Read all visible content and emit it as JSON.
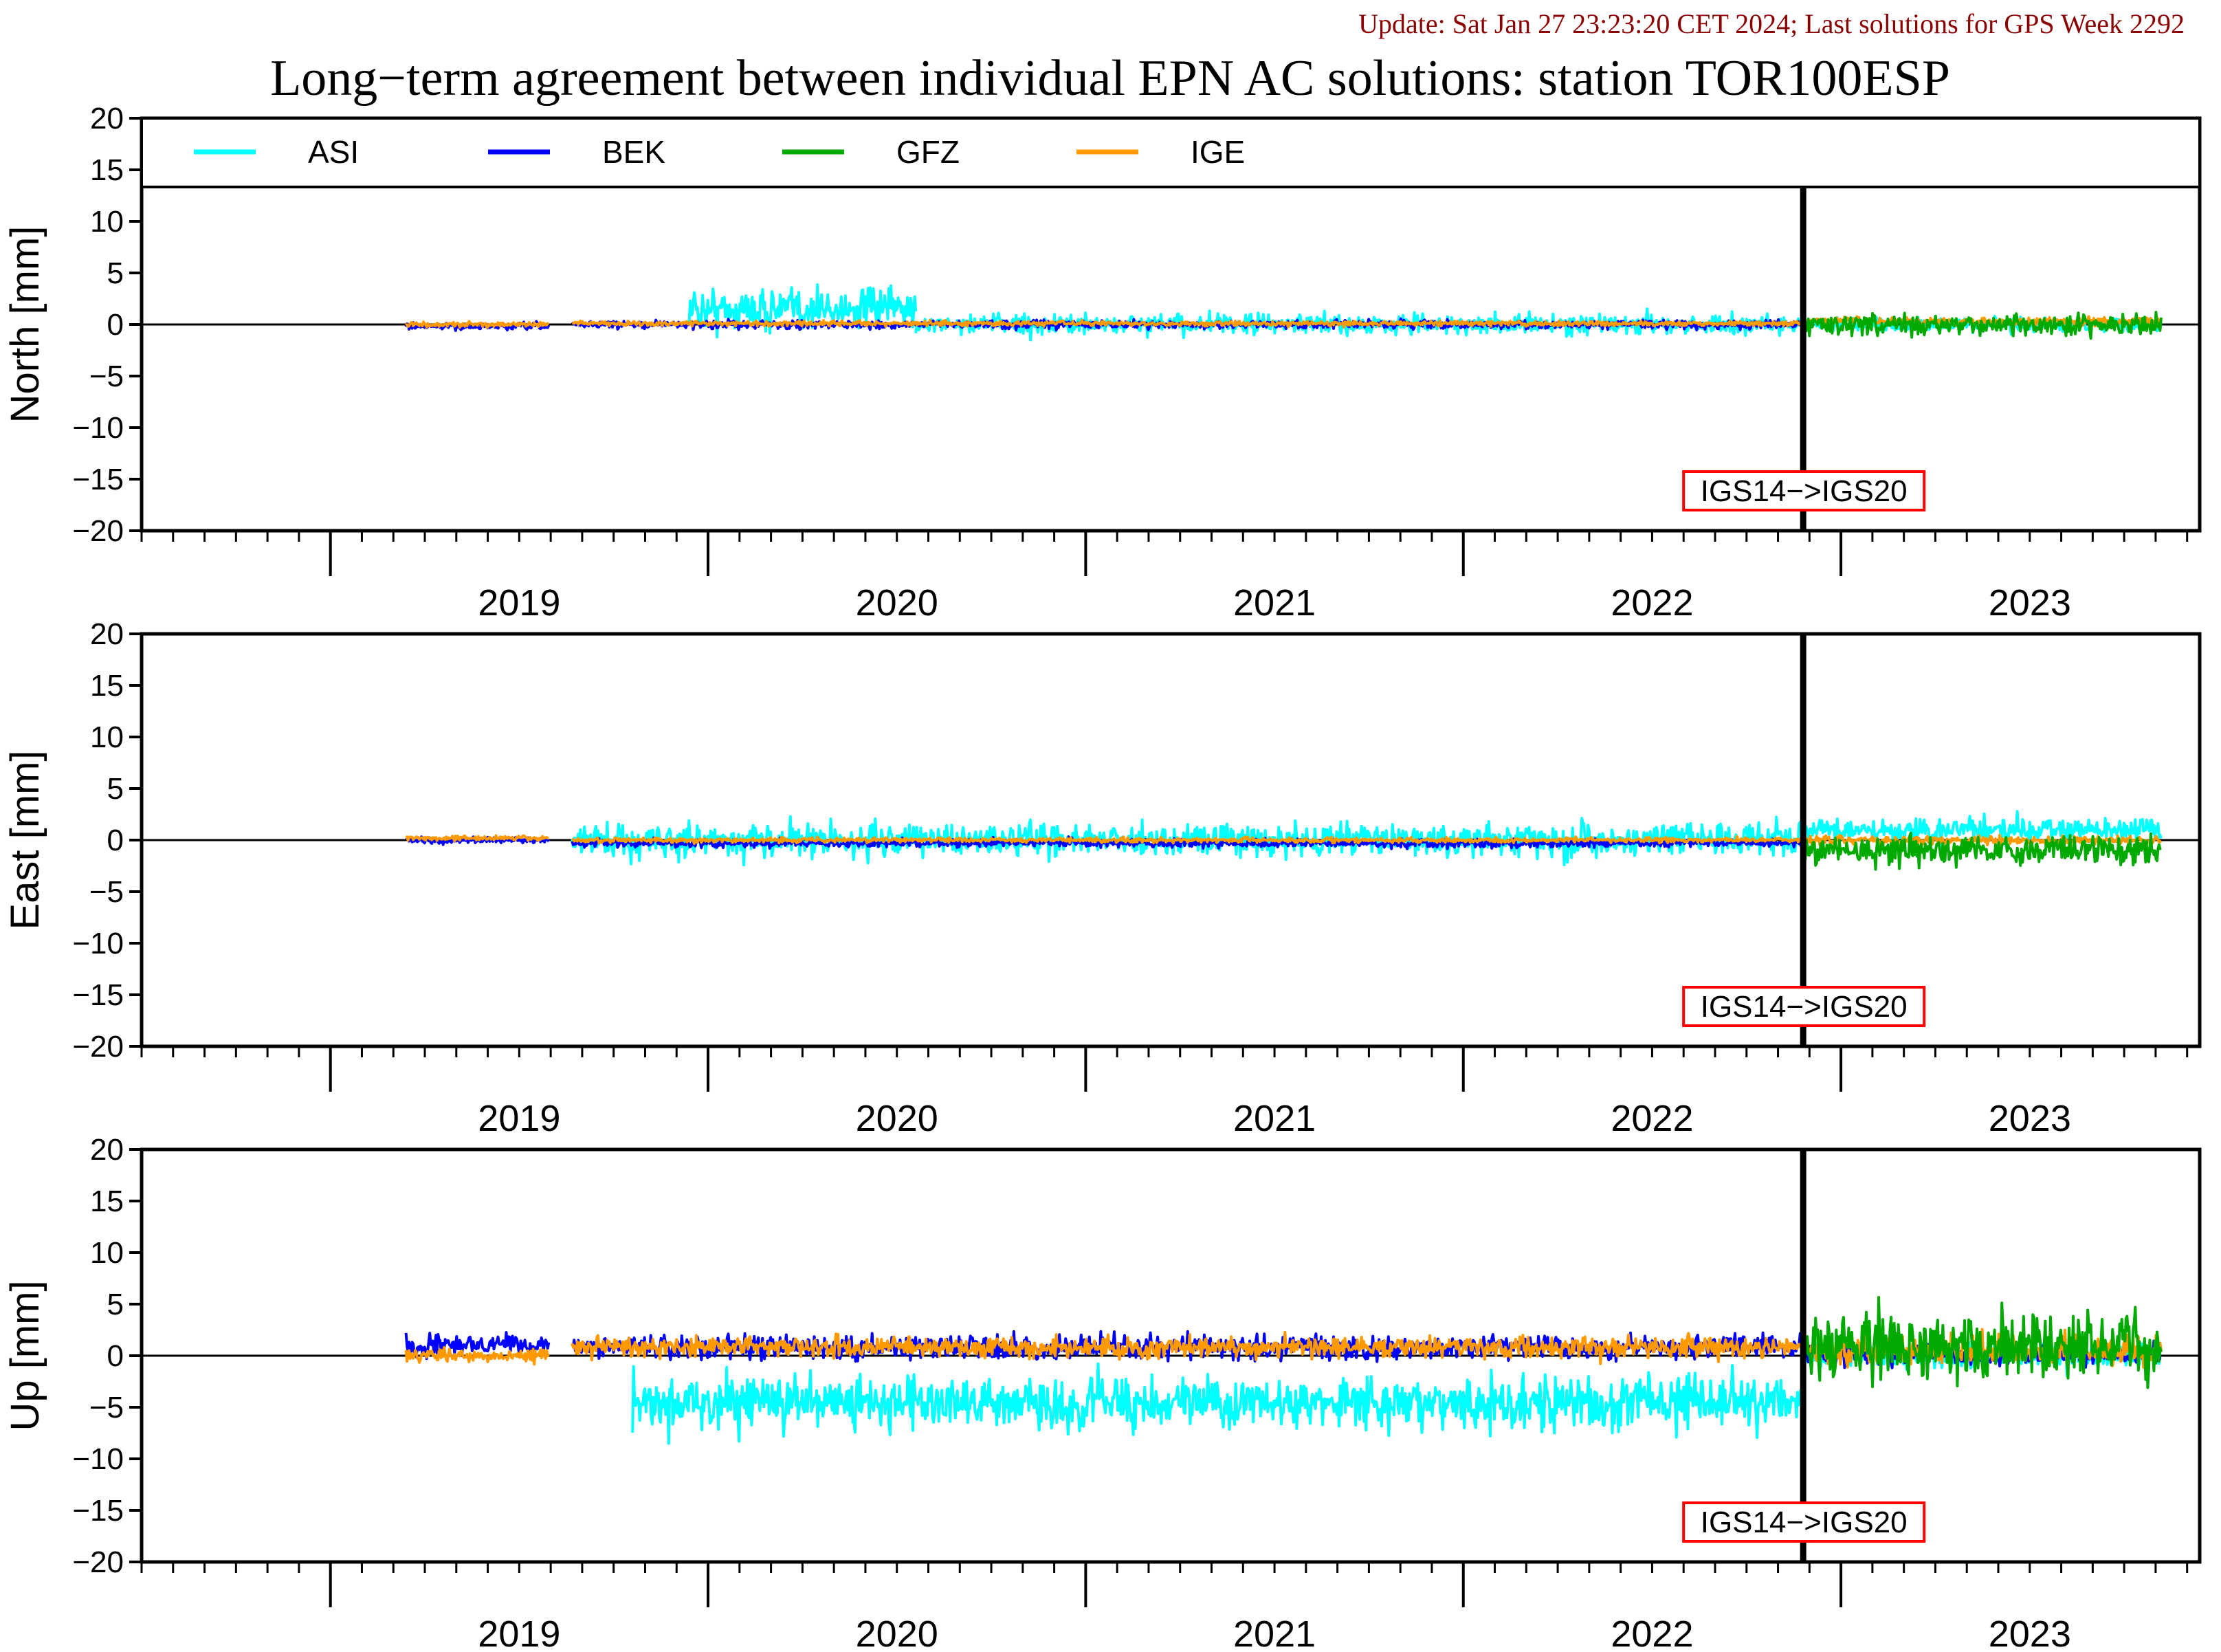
{
  "header": {
    "update_text": "Update: Sat Jan 27 23:23:20 CET 2024; Last solutions for GPS Week 2292",
    "title": "Long−term agreement between individual EPN AC solutions: station TOR100ESP"
  },
  "colors": {
    "ASI": "#00ffff",
    "BEK": "#0000ff",
    "GFZ": "#00aa00",
    "IGE": "#ff9900",
    "update_text": "#8b0000",
    "annotation_border": "#ff0000"
  },
  "chart_data": [
    {
      "type": "line",
      "ylabel": "North [mm]",
      "ylim": [
        -20,
        20
      ],
      "yticks": [
        20,
        15,
        10,
        5,
        0,
        -5,
        -10,
        -15,
        -20
      ],
      "xlim": [
        2018.5,
        2023.95
      ],
      "xticks": [
        "2019",
        "2020",
        "2021",
        "2022",
        "2023"
      ],
      "legend": [
        "ASI",
        "BEK",
        "GFZ",
        "IGE"
      ],
      "legend_position": "top",
      "event": {
        "label": "IGS14−>IGS20",
        "x": 2022.9
      },
      "series": [
        {
          "name": "ASI",
          "segments": [
            [
              2019.95,
              2020.55,
              1.5,
              2.5
            ],
            [
              2020.55,
              2022.9,
              0,
              1.2
            ],
            [
              2022.9,
              2023.85,
              0,
              0.8
            ]
          ]
        },
        {
          "name": "BEK",
          "segments": [
            [
              2019.2,
              2019.58,
              -0.2,
              0.4
            ],
            [
              2019.64,
              2022.9,
              0,
              0.5
            ]
          ]
        },
        {
          "name": "GFZ",
          "segments": [
            [
              2022.9,
              2023.85,
              0,
              1.3
            ]
          ]
        },
        {
          "name": "IGE",
          "segments": [
            [
              2019.2,
              2019.58,
              0,
              0.3
            ],
            [
              2019.64,
              2022.9,
              0.1,
              0.3
            ],
            [
              2022.9,
              2023.85,
              0.3,
              0.5
            ]
          ]
        }
      ]
    },
    {
      "type": "line",
      "ylabel": "East [mm]",
      "ylim": [
        -20,
        20
      ],
      "yticks": [
        20,
        15,
        10,
        5,
        0,
        -5,
        -10,
        -15,
        -20
      ],
      "xlim": [
        2018.5,
        2023.95
      ],
      "xticks": [
        "2019",
        "2020",
        "2021",
        "2022",
        "2023"
      ],
      "event": {
        "label": "IGS14−>IGS20",
        "x": 2022.9
      },
      "series": [
        {
          "name": "ASI",
          "segments": [
            [
              2019.64,
              2022.9,
              0,
              2
            ],
            [
              2022.9,
              2023.85,
              1,
              1.5
            ]
          ]
        },
        {
          "name": "BEK",
          "segments": [
            [
              2019.2,
              2019.58,
              0,
              0.4
            ],
            [
              2019.64,
              2022.9,
              -0.3,
              0.5
            ]
          ]
        },
        {
          "name": "GFZ",
          "segments": [
            [
              2022.9,
              2023.85,
              -1,
              1.8
            ]
          ]
        },
        {
          "name": "IGE",
          "segments": [
            [
              2019.2,
              2019.58,
              0.2,
              0.3
            ],
            [
              2019.64,
              2022.9,
              0,
              0.3
            ],
            [
              2022.9,
              2023.85,
              0,
              0.5
            ]
          ]
        }
      ]
    },
    {
      "type": "line",
      "ylabel": "Up [mm]",
      "ylim": [
        -20,
        20
      ],
      "yticks": [
        20,
        15,
        10,
        5,
        0,
        -5,
        -10,
        -15,
        -20
      ],
      "xlim": [
        2018.5,
        2023.95
      ],
      "xticks": [
        "2019",
        "2020",
        "2021",
        "2022",
        "2023"
      ],
      "event": {
        "label": "IGS14−>IGS20",
        "x": 2022.9
      },
      "series": [
        {
          "name": "ASI",
          "segments": [
            [
              2019.8,
              2022.9,
              -4.5,
              3.2
            ],
            [
              2022.9,
              2023.85,
              0,
              1.5
            ]
          ]
        },
        {
          "name": "BEK",
          "segments": [
            [
              2019.2,
              2019.58,
              1,
              1.3
            ],
            [
              2019.64,
              2022.9,
              0.8,
              1.5
            ],
            [
              2022.9,
              2023.85,
              0,
              1.2
            ]
          ]
        },
        {
          "name": "GFZ",
          "segments": [
            [
              2022.9,
              2023.85,
              1,
              4
            ]
          ]
        },
        {
          "name": "IGE",
          "segments": [
            [
              2019.2,
              2019.58,
              0,
              0.8
            ],
            [
              2019.64,
              2022.9,
              0.8,
              1.2
            ],
            [
              2022.9,
              2023.85,
              0.5,
              1.8
            ]
          ]
        }
      ]
    }
  ]
}
